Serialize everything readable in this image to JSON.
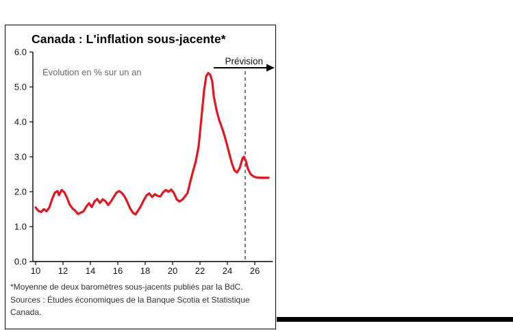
{
  "page": {
    "footnote": "*Moyenne de deux baromètres sous-jacents publiés par la BdC.  Sources : Études économiques de la Banque Scotia et Statistique Canada."
  },
  "chart_data": {
    "type": "line",
    "title": "Canada : L'inflation sous-jacente*",
    "annotation": "Évolution en % sur un an",
    "forecast_label": "Prévision",
    "xlabel": "",
    "ylabel": "",
    "xlim": [
      2009.8,
      2027.2
    ],
    "ylim": [
      0,
      6
    ],
    "x_ticks": [
      10,
      12,
      14,
      16,
      18,
      20,
      22,
      24,
      26
    ],
    "y_ticks": [
      0,
      1,
      2,
      3,
      4,
      5,
      6
    ],
    "y_tick_format": "one-decimal",
    "grid": false,
    "legend_position": "none",
    "forecast_line_x": 2025.3,
    "line_color": "#e8131c",
    "series": [
      {
        "name": "Inflation sous-jacente (évolution en % sur un an)",
        "color": "#e8131c",
        "points": [
          [
            2010.0,
            1.55
          ],
          [
            2010.2,
            1.45
          ],
          [
            2010.4,
            1.42
          ],
          [
            2010.6,
            1.5
          ],
          [
            2010.8,
            1.44
          ],
          [
            2011.0,
            1.55
          ],
          [
            2011.2,
            1.78
          ],
          [
            2011.4,
            1.97
          ],
          [
            2011.6,
            2.02
          ],
          [
            2011.7,
            1.9
          ],
          [
            2011.9,
            2.05
          ],
          [
            2012.1,
            1.98
          ],
          [
            2012.3,
            1.82
          ],
          [
            2012.5,
            1.62
          ],
          [
            2012.7,
            1.52
          ],
          [
            2012.9,
            1.45
          ],
          [
            2013.1,
            1.36
          ],
          [
            2013.3,
            1.4
          ],
          [
            2013.5,
            1.44
          ],
          [
            2013.7,
            1.57
          ],
          [
            2013.9,
            1.67
          ],
          [
            2014.1,
            1.56
          ],
          [
            2014.3,
            1.72
          ],
          [
            2014.5,
            1.79
          ],
          [
            2014.7,
            1.68
          ],
          [
            2014.9,
            1.78
          ],
          [
            2015.1,
            1.73
          ],
          [
            2015.3,
            1.62
          ],
          [
            2015.5,
            1.72
          ],
          [
            2015.7,
            1.85
          ],
          [
            2015.9,
            1.97
          ],
          [
            2016.1,
            2.02
          ],
          [
            2016.3,
            1.96
          ],
          [
            2016.5,
            1.86
          ],
          [
            2016.7,
            1.7
          ],
          [
            2016.9,
            1.52
          ],
          [
            2017.1,
            1.4
          ],
          [
            2017.3,
            1.35
          ],
          [
            2017.5,
            1.47
          ],
          [
            2017.7,
            1.6
          ],
          [
            2017.9,
            1.76
          ],
          [
            2018.1,
            1.9
          ],
          [
            2018.3,
            1.95
          ],
          [
            2018.5,
            1.85
          ],
          [
            2018.7,
            1.93
          ],
          [
            2018.9,
            1.88
          ],
          [
            2019.1,
            1.86
          ],
          [
            2019.3,
            1.98
          ],
          [
            2019.5,
            2.05
          ],
          [
            2019.7,
            2.0
          ],
          [
            2019.9,
            2.06
          ],
          [
            2020.1,
            1.96
          ],
          [
            2020.3,
            1.78
          ],
          [
            2020.5,
            1.72
          ],
          [
            2020.7,
            1.77
          ],
          [
            2020.9,
            1.86
          ],
          [
            2021.1,
            1.97
          ],
          [
            2021.3,
            2.3
          ],
          [
            2021.5,
            2.6
          ],
          [
            2021.7,
            2.88
          ],
          [
            2021.9,
            3.3
          ],
          [
            2022.1,
            4.1
          ],
          [
            2022.3,
            4.9
          ],
          [
            2022.45,
            5.3
          ],
          [
            2022.6,
            5.4
          ],
          [
            2022.75,
            5.35
          ],
          [
            2022.9,
            5.15
          ],
          [
            2023.0,
            4.75
          ],
          [
            2023.2,
            4.35
          ],
          [
            2023.4,
            4.05
          ],
          [
            2023.5,
            3.95
          ],
          [
            2023.7,
            3.72
          ],
          [
            2023.9,
            3.45
          ],
          [
            2024.1,
            3.15
          ],
          [
            2024.3,
            2.85
          ],
          [
            2024.5,
            2.62
          ],
          [
            2024.7,
            2.55
          ],
          [
            2024.9,
            2.68
          ],
          [
            2025.1,
            2.95
          ],
          [
            2025.2,
            3.0
          ],
          [
            2025.35,
            2.88
          ],
          [
            2025.5,
            2.65
          ],
          [
            2025.7,
            2.5
          ],
          [
            2025.9,
            2.44
          ],
          [
            2026.1,
            2.41
          ],
          [
            2026.5,
            2.4
          ],
          [
            2027.0,
            2.4
          ]
        ]
      }
    ]
  }
}
